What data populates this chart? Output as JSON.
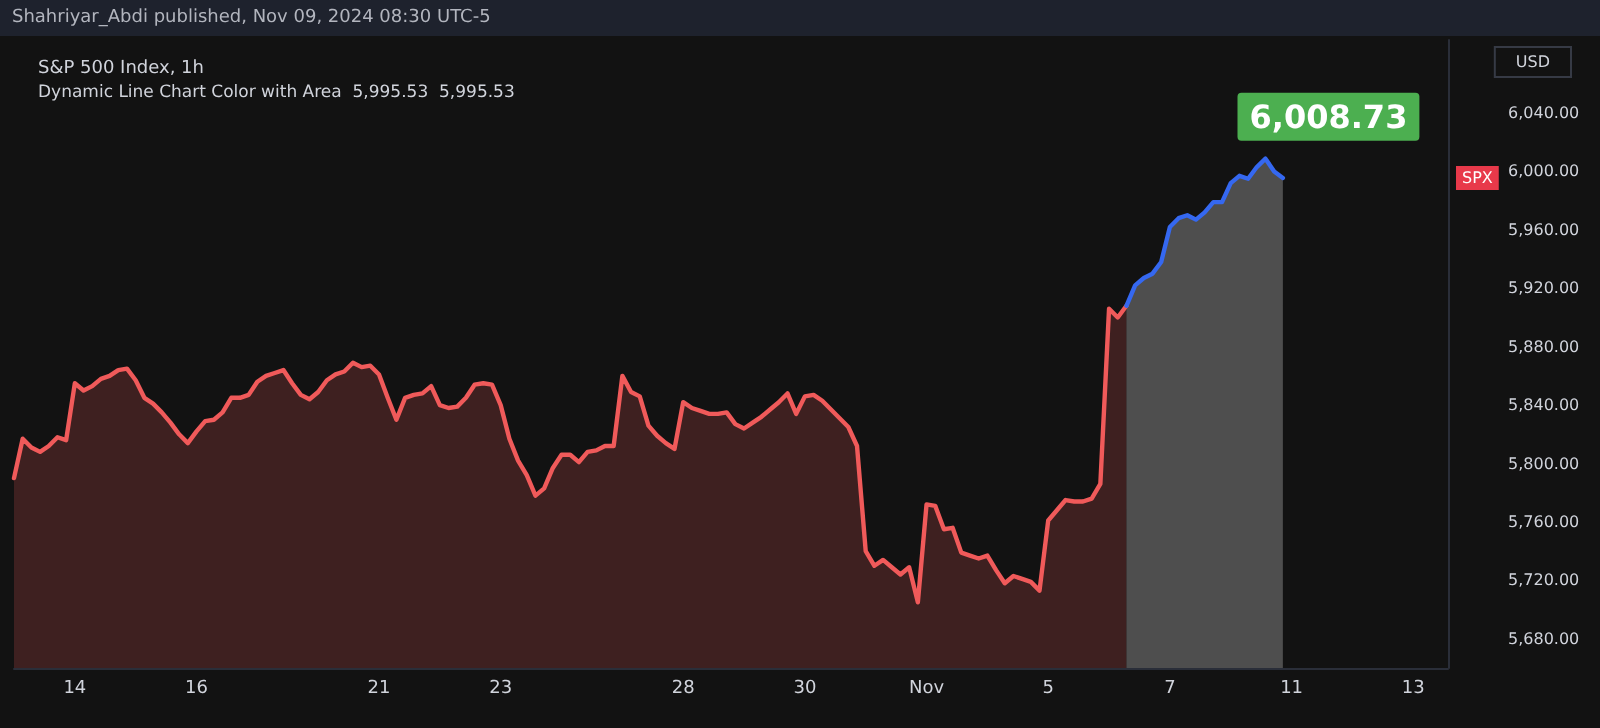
{
  "chart_data": {
    "type": "area",
    "title": "S&P 500 Index, 1h",
    "subtitle": "Dynamic Line Chart Color with Area  5,995.53  5,995.53",
    "annotations": [
      "Shahriyar_Abdi published, Nov 09, 2024 08:30 UTC-5",
      "USD",
      "SPX",
      "6,008.73"
    ],
    "categories": [
      null,
      null,
      null,
      null,
      null,
      null,
      null,
      "14",
      null,
      null,
      null,
      null,
      null,
      null,
      null,
      null,
      null,
      null,
      null,
      null,
      null,
      "16",
      null,
      null,
      null,
      null,
      null,
      null,
      null,
      null,
      null,
      null,
      null,
      null,
      null,
      null,
      null,
      null,
      null,
      null,
      null,
      null,
      "21",
      null,
      null,
      null,
      null,
      null,
      null,
      null,
      null,
      null,
      null,
      null,
      null,
      null,
      "23",
      null,
      null,
      null,
      null,
      null,
      null,
      null,
      null,
      null,
      null,
      null,
      null,
      null,
      null,
      null,
      null,
      null,
      null,
      null,
      null,
      "28",
      null,
      null,
      null,
      null,
      null,
      null,
      null,
      null,
      null,
      null,
      null,
      null,
      null,
      "30",
      null,
      null,
      null,
      null,
      null,
      null,
      null,
      null,
      null,
      null,
      null,
      null,
      null,
      "Nov",
      null,
      null,
      null,
      null,
      null,
      null,
      null,
      null,
      null,
      null,
      null,
      null,
      null,
      "5",
      null,
      null,
      null,
      null,
      null,
      null,
      null,
      null,
      null,
      null,
      null,
      null,
      null,
      "7",
      null,
      null,
      null,
      null,
      null,
      null,
      null,
      null,
      null,
      null,
      null,
      null,
      null,
      "11",
      null,
      null,
      null,
      null,
      null,
      null,
      null,
      null,
      null,
      null,
      null,
      null,
      null,
      "13",
      null,
      null,
      null,
      null
    ],
    "series": [
      {
        "color": "#f05a5a",
        "values": [
          5790,
          5817,
          5811,
          5808,
          5812,
          5818,
          5816,
          5855,
          5850,
          5853,
          5858,
          5860,
          5864,
          5865,
          5857,
          5845,
          5841,
          5835,
          5828,
          5820,
          5814,
          5822,
          5829,
          5830,
          5835,
          5845,
          5845,
          5847,
          5856,
          5860,
          5862,
          5864,
          5855,
          5847,
          5844,
          5849,
          5857,
          5861,
          5863,
          5869,
          5866,
          5867,
          5861,
          5845,
          5830,
          5845,
          5847,
          5848,
          5853,
          5840,
          5838,
          5839,
          5845,
          5854,
          5855,
          5854,
          5840,
          5817,
          5802,
          5792,
          5778,
          5783,
          5797,
          5806,
          5806,
          5801,
          5808,
          5809,
          5812,
          5812,
          5860,
          5849,
          5846,
          5826,
          5819,
          5814,
          5810,
          5842,
          5838,
          5836,
          5834,
          5834,
          5835,
          5827,
          5824,
          5828,
          5832,
          5837,
          5842,
          5848,
          5834,
          5846,
          5847,
          5843,
          5837,
          5831,
          5825,
          5812,
          5740,
          5730,
          5734,
          5729,
          5724,
          5729,
          5705,
          5772,
          5771,
          5755,
          5756,
          5739,
          5737,
          5735,
          5737,
          5727,
          5718,
          5723,
          5721,
          5719,
          5713,
          5761,
          5768,
          5775,
          5774,
          5774,
          5776,
          5786,
          5906,
          5900,
          5908,
          null,
          null,
          null,
          null,
          null,
          null,
          null,
          null,
          null,
          null,
          null,
          null,
          null,
          null,
          null,
          null,
          null,
          null,
          null,
          null,
          null,
          null,
          null,
          null,
          null,
          null,
          null,
          null,
          null,
          null,
          null,
          null,
          null,
          null,
          null,
          null,
          null
        ]
      },
      {
        "color": "#3568f0",
        "values": [
          null,
          null,
          null,
          null,
          null,
          null,
          null,
          null,
          null,
          null,
          null,
          null,
          null,
          null,
          null,
          null,
          null,
          null,
          null,
          null,
          null,
          null,
          null,
          null,
          null,
          null,
          null,
          null,
          null,
          null,
          null,
          null,
          null,
          null,
          null,
          null,
          null,
          null,
          null,
          null,
          null,
          null,
          null,
          null,
          null,
          null,
          null,
          null,
          null,
          null,
          null,
          null,
          null,
          null,
          null,
          null,
          null,
          null,
          null,
          null,
          null,
          null,
          null,
          null,
          null,
          null,
          null,
          null,
          null,
          null,
          null,
          null,
          null,
          null,
          null,
          null,
          null,
          null,
          null,
          null,
          null,
          null,
          null,
          null,
          null,
          null,
          null,
          null,
          null,
          null,
          null,
          null,
          null,
          null,
          null,
          null,
          null,
          null,
          null,
          null,
          null,
          null,
          null,
          null,
          null,
          null,
          null,
          null,
          null,
          null,
          null,
          null,
          null,
          null,
          null,
          null,
          null,
          null,
          null,
          null,
          null,
          null,
          null,
          null,
          null,
          null,
          null,
          null,
          5908,
          5922,
          5927,
          5930,
          5938,
          5962,
          5968,
          5970,
          5967,
          5972,
          5979,
          5979,
          5992,
          5997,
          5995,
          6003,
          6008.73,
          6000,
          5995.53,
          null,
          null,
          null,
          null,
          null,
          null,
          null,
          null,
          null,
          null,
          null,
          null,
          null,
          null,
          null,
          null,
          null,
          null,
          null
        ]
      }
    ],
    "ylim": [
      5660,
      6090
    ],
    "yticks": [
      {
        "value": 5680,
        "label": "5,680.00"
      },
      {
        "value": 5720,
        "label": "5,720.00"
      },
      {
        "value": 5760,
        "label": "5,760.00"
      },
      {
        "value": 5800,
        "label": "5,800.00"
      },
      {
        "value": 5840,
        "label": "5,840.00"
      },
      {
        "value": 5880,
        "label": "5,880.00"
      },
      {
        "value": 5920,
        "label": "5,920.00"
      },
      {
        "value": 5960,
        "label": "5,960.00"
      },
      {
        "value": 6000,
        "label": "6,000.00"
      },
      {
        "value": 6040,
        "label": "6,040.00"
      }
    ],
    "grid": false
  }
}
